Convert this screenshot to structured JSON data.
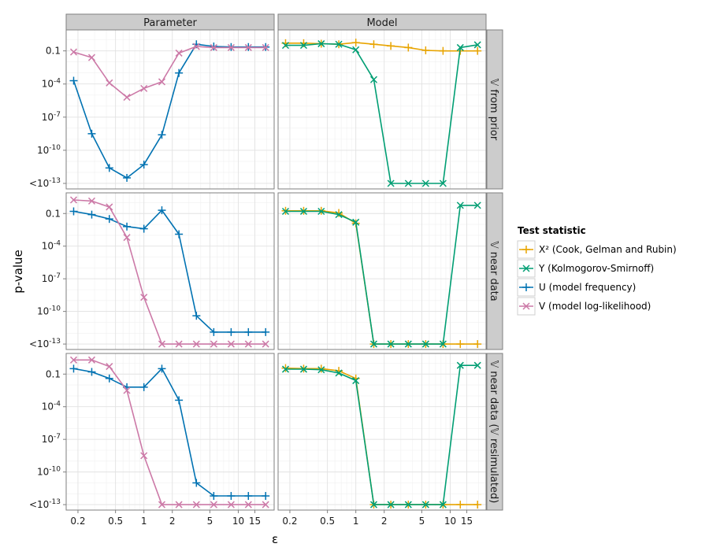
{
  "chart_data": {
    "type": "line",
    "xlabel": "ε",
    "ylabel": "p-value",
    "x_scale": "log",
    "y_scale": "log",
    "xlim": [
      0.15,
      24
    ],
    "ylim_exponent": [
      -13.5,
      0.9
    ],
    "x_ticks": [
      {
        "value": 0.2,
        "label": "0.2"
      },
      {
        "value": 0.5,
        "label": "0.5"
      },
      {
        "value": 1,
        "label": "1"
      },
      {
        "value": 2,
        "label": "2"
      },
      {
        "value": 5,
        "label": "5"
      },
      {
        "value": 10,
        "label": "10"
      },
      {
        "value": 15,
        "label": "15"
      }
    ],
    "y_ticks": [
      {
        "exp": -1,
        "label": "0.1",
        "sup": ""
      },
      {
        "exp": -4,
        "label": "10",
        "sup": "-4"
      },
      {
        "exp": -7,
        "label": "10",
        "sup": "-7"
      },
      {
        "exp": -10,
        "label": "10",
        "sup": "-10"
      },
      {
        "exp": -13,
        "label": "<10",
        "sup": "-13"
      }
    ],
    "columns": [
      "Parameter",
      "Model"
    ],
    "rows": [
      "𝕍 from prior",
      "𝕍 near data",
      "𝕍 near data (𝕍 resimulated)"
    ],
    "legend": {
      "title": "Test statistic",
      "entries": [
        {
          "key": "X2",
          "label": "X² (Cook, Gelman and Rubin)",
          "color": "#e8a400",
          "marker": "plus"
        },
        {
          "key": "Y",
          "label": "Y (Kolmogorov-Smirnoff)",
          "color": "#009e73",
          "marker": "cross"
        },
        {
          "key": "U",
          "label": "U (model frequency)",
          "color": "#0072b2",
          "marker": "plus"
        },
        {
          "key": "V",
          "label": "V (model log-likelihood)",
          "color": "#cc79a7",
          "marker": "cross"
        }
      ]
    },
    "epsilon": [
      0.18,
      0.28,
      0.43,
      0.66,
      1.0,
      1.55,
      2.35,
      3.6,
      5.5,
      8.4,
      12.8,
      19.5
    ],
    "panels": [
      {
        "row": 0,
        "col": 0,
        "series": [
          {
            "key": "U",
            "x_index": [
              0,
              1,
              2,
              3,
              4,
              5,
              6,
              7,
              8,
              9,
              10,
              11
            ],
            "log10p": [
              -3.7,
              -8.5,
              -11.6,
              -12.5,
              -11.3,
              -8.6,
              -3.0,
              -0.4,
              -0.6,
              -0.65,
              -0.65,
              -0.65
            ]
          },
          {
            "key": "V",
            "x_index": [
              0,
              1,
              2,
              3,
              4,
              5,
              6,
              7,
              8,
              9,
              10,
              11
            ],
            "log10p": [
              -1.1,
              -1.6,
              -3.9,
              -5.2,
              -4.4,
              -3.8,
              -1.2,
              -0.6,
              -0.7,
              -0.7,
              -0.7,
              -0.7
            ]
          }
        ]
      },
      {
        "row": 0,
        "col": 1,
        "series": [
          {
            "key": "X2",
            "x_index": [
              0,
              1,
              2,
              3,
              4,
              5,
              6,
              7,
              8,
              9,
              10,
              11
            ],
            "log10p": [
              -0.3,
              -0.3,
              -0.35,
              -0.4,
              -0.25,
              -0.4,
              -0.55,
              -0.7,
              -0.95,
              -1.0,
              -1.0,
              -1.0
            ]
          },
          {
            "key": "Y",
            "x_index": [
              0,
              1,
              2,
              3,
              4,
              5,
              6,
              7,
              8,
              9,
              10,
              11
            ],
            "log10p": [
              -0.5,
              -0.5,
              -0.35,
              -0.4,
              -0.9,
              -3.6,
              -13.0,
              -13.0,
              -13.0,
              -13.0,
              -0.7,
              -0.45
            ]
          }
        ]
      },
      {
        "row": 1,
        "col": 0,
        "series": [
          {
            "key": "U",
            "x_index": [
              0,
              1,
              2,
              3,
              4,
              5,
              6,
              7,
              8,
              9,
              10,
              11
            ],
            "log10p": [
              -0.8,
              -1.1,
              -1.5,
              -2.2,
              -2.4,
              -0.7,
              -2.9,
              -10.4,
              -11.9,
              -11.9,
              -11.9,
              -11.9
            ]
          },
          {
            "key": "V",
            "x_index": [
              0,
              1,
              2,
              3,
              4,
              5,
              6,
              7,
              8,
              9,
              10,
              11
            ],
            "log10p": [
              0.25,
              0.15,
              -0.4,
              -3.2,
              -8.7,
              -13.0,
              -13.0,
              -13.0,
              -13.0,
              -13.0,
              -13.0,
              -13.0
            ]
          }
        ]
      },
      {
        "row": 1,
        "col": 1,
        "series": [
          {
            "key": "X2",
            "x_index": [
              0,
              1,
              2,
              3,
              4,
              5,
              6,
              7,
              8,
              9,
              10,
              11
            ],
            "log10p": [
              -0.75,
              -0.75,
              -0.75,
              -0.95,
              -1.9,
              -13.0,
              -13.0,
              -13.0,
              -13.0,
              -13.0,
              -13.0,
              -13.0
            ]
          },
          {
            "key": "Y",
            "x_index": [
              0,
              1,
              2,
              3,
              4,
              5,
              6,
              7,
              8,
              9,
              10,
              11
            ],
            "log10p": [
              -0.8,
              -0.8,
              -0.8,
              -1.1,
              -1.8,
              -13.0,
              -13.0,
              -13.0,
              -13.0,
              -13.0,
              -0.25,
              -0.25
            ]
          }
        ]
      },
      {
        "row": 2,
        "col": 0,
        "series": [
          {
            "key": "U",
            "x_index": [
              0,
              1,
              2,
              3,
              4,
              5,
              6,
              7,
              8,
              9,
              10,
              11
            ],
            "log10p": [
              -0.5,
              -0.8,
              -1.4,
              -2.2,
              -2.2,
              -0.5,
              -3.4,
              -11.0,
              -12.2,
              -12.2,
              -12.2,
              -12.2
            ]
          },
          {
            "key": "V",
            "x_index": [
              0,
              1,
              2,
              3,
              4,
              5,
              6,
              7,
              8,
              9,
              10,
              11
            ],
            "log10p": [
              0.3,
              0.3,
              -0.3,
              -2.5,
              -8.5,
              -13.0,
              -13.0,
              -13.0,
              -13.0,
              -13.0,
              -13.0,
              -13.0
            ]
          }
        ]
      },
      {
        "row": 2,
        "col": 1,
        "series": [
          {
            "key": "X2",
            "x_index": [
              0,
              1,
              2,
              3,
              4,
              5,
              6,
              7,
              8,
              9,
              10,
              11
            ],
            "log10p": [
              -0.45,
              -0.5,
              -0.5,
              -0.7,
              -1.4,
              -13.0,
              -13.0,
              -13.0,
              -13.0,
              -13.0,
              -13.0,
              -13.0
            ]
          },
          {
            "key": "Y",
            "x_index": [
              0,
              1,
              2,
              3,
              4,
              5,
              6,
              7,
              8,
              9,
              10,
              11
            ],
            "log10p": [
              -0.55,
              -0.55,
              -0.6,
              -0.9,
              -1.6,
              -13.0,
              -13.0,
              -13.0,
              -13.0,
              -13.0,
              -0.2,
              -0.2
            ]
          }
        ]
      }
    ]
  }
}
